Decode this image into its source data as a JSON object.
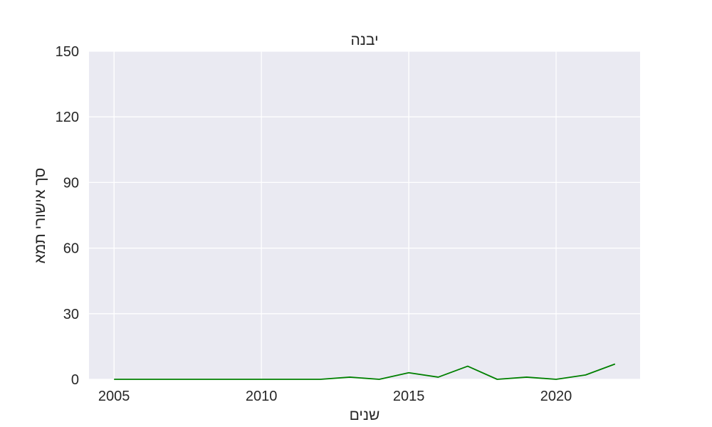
{
  "chart_data": {
    "type": "line",
    "title": "יבנה",
    "xlabel": "שנים",
    "ylabel": "סך אישורי תמא",
    "x": [
      2005,
      2006,
      2007,
      2008,
      2009,
      2010,
      2011,
      2012,
      2013,
      2014,
      2015,
      2016,
      2017,
      2018,
      2019,
      2020,
      2021,
      2022
    ],
    "series": [
      {
        "values": [
          0,
          0,
          0,
          0,
          0,
          0,
          0,
          0,
          1,
          0,
          3,
          1,
          6,
          0,
          1,
          0,
          2,
          7
        ],
        "color": "#008000"
      }
    ],
    "xlim": [
      2004.15,
      2022.85
    ],
    "ylim": [
      0,
      150
    ],
    "xticks": [
      2005,
      2010,
      2015,
      2020
    ],
    "yticks": [
      0,
      30,
      60,
      90,
      120,
      150
    ],
    "grid": true,
    "background": "#eaeaf2"
  }
}
